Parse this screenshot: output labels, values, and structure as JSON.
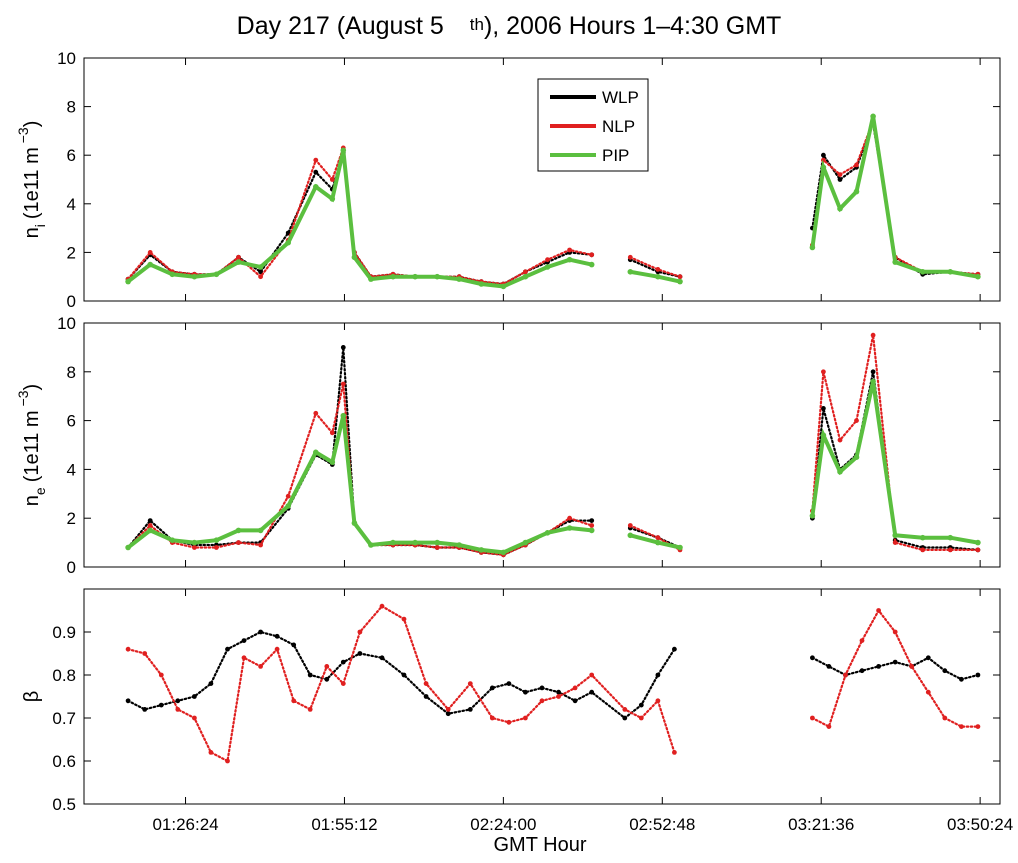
{
  "figure": {
    "title_main": "Day 217 (August 5",
    "title_sup": "th",
    "title_rest": "), 2006 Hours 1–4:30 GMT",
    "xlabel": "GMT Hour",
    "xticks": [
      "01:26:24",
      "01:55:12",
      "02:24:00",
      "02:52:48",
      "03:21:36",
      "03:50:24"
    ],
    "colors": {
      "WLP": "#000000",
      "NLP": "#e02020",
      "PIP": "#5bbf3f"
    }
  },
  "chart_data": [
    {
      "type": "scatter",
      "panel": "ni",
      "ylabel_main": "n",
      "ylabel_sub": "i",
      "ylabel_unit": "(1e11 m",
      "ylabel_sup": "−3",
      "ylabel_close": ")",
      "ylim": [
        0,
        10
      ],
      "yticks": [
        0,
        2,
        4,
        6,
        8,
        10
      ],
      "xlim": [
        "01:08:00",
        "03:54:00"
      ],
      "legend": {
        "placement": "top-center",
        "entries": [
          "WLP",
          "NLP",
          "PIP"
        ]
      },
      "series": [
        {
          "name": "WLP",
          "color": "#000000",
          "x": [
            "01:16",
            "01:20",
            "01:24",
            "01:28",
            "01:32",
            "01:36",
            "01:40",
            "01:45",
            "01:50",
            "01:53",
            "01:55",
            "01:57",
            "02:00",
            "02:04",
            "02:08",
            "02:12",
            "02:16",
            "02:20",
            "02:24",
            "02:28",
            "02:32",
            "02:36",
            "02:40",
            "02:47",
            "02:52",
            "02:56",
            "03:20",
            "03:22",
            "03:25",
            "03:28",
            "03:31",
            "03:35",
            "03:40",
            "03:45",
            "03:50"
          ],
          "y": [
            0.9,
            1.9,
            1.2,
            1.1,
            1.1,
            1.8,
            1.2,
            2.8,
            5.3,
            4.6,
            6.1,
            2.0,
            1.0,
            1.1,
            1.0,
            1.0,
            1.0,
            0.8,
            0.7,
            1.2,
            1.6,
            2.0,
            1.9,
            1.7,
            1.2,
            1.0,
            3.0,
            6.0,
            5.0,
            5.5,
            7.3,
            1.8,
            1.1,
            1.2,
            1.1
          ]
        },
        {
          "name": "NLP",
          "color": "#e02020",
          "x": [
            "01:16",
            "01:20",
            "01:24",
            "01:28",
            "01:32",
            "01:36",
            "01:40",
            "01:45",
            "01:50",
            "01:53",
            "01:55",
            "01:57",
            "02:00",
            "02:04",
            "02:08",
            "02:12",
            "02:16",
            "02:20",
            "02:24",
            "02:28",
            "02:32",
            "02:36",
            "02:40",
            "02:47",
            "02:52",
            "02:56",
            "03:20",
            "03:22",
            "03:25",
            "03:28",
            "03:31",
            "03:35",
            "03:40",
            "03:45",
            "03:50"
          ],
          "y": [
            0.9,
            2.0,
            1.2,
            1.1,
            1.1,
            1.8,
            1.0,
            2.5,
            5.8,
            5.0,
            6.3,
            2.0,
            1.0,
            1.1,
            1.0,
            1.0,
            1.0,
            0.8,
            0.7,
            1.2,
            1.7,
            2.1,
            1.9,
            1.8,
            1.3,
            1.0,
            2.3,
            5.8,
            5.2,
            5.6,
            7.4,
            1.8,
            1.2,
            1.2,
            1.1
          ]
        },
        {
          "name": "PIP",
          "color": "#5bbf3f",
          "x": [
            "01:16",
            "01:20",
            "01:24",
            "01:28",
            "01:32",
            "01:36",
            "01:40",
            "01:45",
            "01:50",
            "01:53",
            "01:55",
            "01:57",
            "02:00",
            "02:04",
            "02:08",
            "02:12",
            "02:16",
            "02:20",
            "02:24",
            "02:28",
            "02:32",
            "02:36",
            "02:40",
            "02:47",
            "02:52",
            "02:56",
            "03:20",
            "03:22",
            "03:25",
            "03:28",
            "03:31",
            "03:35",
            "03:40",
            "03:45",
            "03:50"
          ],
          "y": [
            0.8,
            1.5,
            1.1,
            1.0,
            1.1,
            1.6,
            1.4,
            2.4,
            4.7,
            4.2,
            6.2,
            1.8,
            0.9,
            1.0,
            1.0,
            1.0,
            0.9,
            0.7,
            0.6,
            1.0,
            1.4,
            1.7,
            1.5,
            1.2,
            1.0,
            0.8,
            2.2,
            5.5,
            3.8,
            4.5,
            7.6,
            1.6,
            1.2,
            1.2,
            1.0
          ]
        }
      ]
    },
    {
      "type": "scatter",
      "panel": "ne",
      "ylabel_main": "n",
      "ylabel_sub": "e",
      "ylabel_unit": "(1e11 m",
      "ylabel_sup": "−3",
      "ylabel_close": ")",
      "ylim": [
        0,
        10
      ],
      "yticks": [
        0,
        2,
        4,
        6,
        8,
        10
      ],
      "xlim": [
        "01:08:00",
        "03:54:00"
      ],
      "series": [
        {
          "name": "WLP",
          "color": "#000000",
          "x": [
            "01:16",
            "01:20",
            "01:24",
            "01:28",
            "01:32",
            "01:36",
            "01:40",
            "01:45",
            "01:50",
            "01:53",
            "01:55",
            "01:57",
            "02:00",
            "02:04",
            "02:08",
            "02:12",
            "02:16",
            "02:20",
            "02:24",
            "02:28",
            "02:32",
            "02:36",
            "02:40",
            "02:47",
            "02:52",
            "02:56",
            "03:20",
            "03:22",
            "03:25",
            "03:28",
            "03:31",
            "03:35",
            "03:40",
            "03:45",
            "03:50"
          ],
          "y": [
            0.8,
            1.9,
            1.1,
            0.9,
            0.9,
            1.0,
            1.0,
            2.4,
            4.6,
            4.2,
            9.0,
            1.8,
            0.9,
            0.9,
            0.9,
            0.8,
            0.8,
            0.6,
            0.5,
            0.9,
            1.4,
            1.9,
            1.9,
            1.6,
            1.2,
            0.8,
            2.0,
            6.5,
            4.0,
            4.6,
            8.0,
            1.1,
            0.8,
            0.8,
            0.7
          ]
        },
        {
          "name": "NLP",
          "color": "#e02020",
          "x": [
            "01:16",
            "01:20",
            "01:24",
            "01:28",
            "01:32",
            "01:36",
            "01:40",
            "01:45",
            "01:50",
            "01:53",
            "01:55",
            "01:57",
            "02:00",
            "02:04",
            "02:08",
            "02:12",
            "02:16",
            "02:20",
            "02:24",
            "02:28",
            "02:32",
            "02:36",
            "02:40",
            "02:47",
            "02:52",
            "02:56",
            "03:20",
            "03:22",
            "03:25",
            "03:28",
            "03:31",
            "03:35",
            "03:40",
            "03:45",
            "03:50"
          ],
          "y": [
            0.8,
            1.7,
            1.0,
            0.8,
            0.8,
            1.0,
            0.9,
            2.9,
            6.3,
            5.5,
            7.5,
            1.8,
            0.9,
            0.9,
            0.9,
            0.8,
            0.8,
            0.6,
            0.5,
            0.9,
            1.4,
            2.0,
            1.7,
            1.7,
            1.2,
            0.7,
            2.3,
            8.0,
            5.2,
            6.0,
            9.5,
            1.0,
            0.7,
            0.7,
            0.7
          ]
        },
        {
          "name": "PIP",
          "color": "#5bbf3f",
          "x": [
            "01:16",
            "01:20",
            "01:24",
            "01:28",
            "01:32",
            "01:36",
            "01:40",
            "01:45",
            "01:50",
            "01:53",
            "01:55",
            "01:57",
            "02:00",
            "02:04",
            "02:08",
            "02:12",
            "02:16",
            "02:20",
            "02:24",
            "02:28",
            "02:32",
            "02:36",
            "02:40",
            "02:47",
            "02:52",
            "02:56",
            "03:20",
            "03:22",
            "03:25",
            "03:28",
            "03:31",
            "03:35",
            "03:40",
            "03:45",
            "03:50"
          ],
          "y": [
            0.8,
            1.5,
            1.1,
            1.0,
            1.1,
            1.5,
            1.5,
            2.5,
            4.7,
            4.3,
            6.2,
            1.8,
            0.9,
            1.0,
            1.0,
            1.0,
            0.9,
            0.7,
            0.6,
            1.0,
            1.4,
            1.6,
            1.5,
            1.3,
            1.0,
            0.8,
            2.1,
            5.4,
            3.9,
            4.5,
            7.6,
            1.3,
            1.2,
            1.2,
            1.0
          ]
        }
      ]
    },
    {
      "type": "scatter",
      "panel": "beta",
      "ylabel_main": "β",
      "ylim": [
        0.5,
        1.0
      ],
      "yticks": [
        0.5,
        0.6,
        0.7,
        0.8,
        0.9
      ],
      "xlim": [
        "01:08:00",
        "03:54:00"
      ],
      "series": [
        {
          "name": "WLP",
          "color": "#000000",
          "x": [
            "01:16",
            "01:19",
            "01:22",
            "01:25",
            "01:28",
            "01:31",
            "01:34",
            "01:37",
            "01:40",
            "01:43",
            "01:46",
            "01:49",
            "01:52",
            "01:55",
            "01:58",
            "02:02",
            "02:06",
            "02:10",
            "02:14",
            "02:18",
            "02:22",
            "02:25",
            "02:28",
            "02:31",
            "02:34",
            "02:37",
            "02:40",
            "02:46",
            "02:49",
            "02:52",
            "02:55",
            "03:20",
            "03:23",
            "03:26",
            "03:29",
            "03:32",
            "03:35",
            "03:38",
            "03:41",
            "03:44",
            "03:47",
            "03:50"
          ],
          "y": [
            0.74,
            0.72,
            0.73,
            0.74,
            0.75,
            0.78,
            0.86,
            0.88,
            0.9,
            0.89,
            0.87,
            0.8,
            0.79,
            0.83,
            0.85,
            0.84,
            0.8,
            0.75,
            0.71,
            0.72,
            0.77,
            0.78,
            0.76,
            0.77,
            0.76,
            0.74,
            0.76,
            0.7,
            0.73,
            0.8,
            0.86,
            0.84,
            0.82,
            0.8,
            0.81,
            0.82,
            0.83,
            0.82,
            0.84,
            0.81,
            0.79,
            0.8
          ]
        },
        {
          "name": "NLP",
          "color": "#e02020",
          "x": [
            "01:16",
            "01:19",
            "01:22",
            "01:25",
            "01:28",
            "01:31",
            "01:34",
            "01:37",
            "01:40",
            "01:43",
            "01:46",
            "01:49",
            "01:52",
            "01:55",
            "01:58",
            "02:02",
            "02:06",
            "02:10",
            "02:14",
            "02:18",
            "02:22",
            "02:25",
            "02:28",
            "02:31",
            "02:34",
            "02:37",
            "02:40",
            "02:46",
            "02:49",
            "02:52",
            "02:55",
            "03:20",
            "03:23",
            "03:26",
            "03:29",
            "03:32",
            "03:35",
            "03:38",
            "03:41",
            "03:44",
            "03:47",
            "03:50"
          ],
          "y": [
            0.86,
            0.85,
            0.8,
            0.72,
            0.7,
            0.62,
            0.6,
            0.84,
            0.82,
            0.86,
            0.74,
            0.72,
            0.82,
            0.78,
            0.9,
            0.96,
            0.93,
            0.78,
            0.72,
            0.78,
            0.7,
            0.69,
            0.7,
            0.74,
            0.75,
            0.77,
            0.8,
            0.72,
            0.7,
            0.74,
            0.62,
            0.7,
            0.68,
            0.8,
            0.88,
            0.95,
            0.9,
            0.82,
            0.76,
            0.7,
            0.68,
            0.68
          ]
        }
      ]
    }
  ]
}
